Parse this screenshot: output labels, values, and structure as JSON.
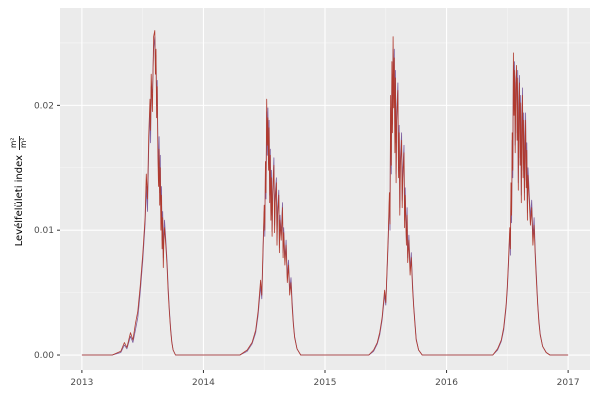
{
  "y_axis": {
    "title_text": "Levélfelületi index",
    "frac_num": "m²",
    "frac_den": "m²"
  },
  "chart_data": {
    "type": "line",
    "title": "",
    "xlabel": "",
    "ylabel": "Levélfelületi index m²/m²",
    "grid": "on",
    "legend": "none",
    "xlim": [
      2012.82,
      2017.18
    ],
    "ylim": [
      -0.0012,
      0.0278
    ],
    "xticks": [
      {
        "v": 2013,
        "label": "2013"
      },
      {
        "v": 2014,
        "label": "2014"
      },
      {
        "v": 2015,
        "label": "2015"
      },
      {
        "v": 2016,
        "label": "2016"
      },
      {
        "v": 2017,
        "label": "2017"
      }
    ],
    "yticks": [
      {
        "v": 0.0,
        "label": "0.00"
      },
      {
        "v": 0.01,
        "label": "0.01"
      },
      {
        "v": 0.02,
        "label": "0.02"
      }
    ],
    "xticks_minor": [
      2013.5,
      2014.5,
      2015.5,
      2016.5
    ],
    "yticks_minor": [
      0.005,
      0.015,
      0.025
    ],
    "colors": {
      "panel_bg": "#ebebeb",
      "grid_major": "#ffffff",
      "grid_minor": "#ffffff",
      "tick_label": "#4d4d4d",
      "tick_mark": "#333333"
    },
    "series": [
      {
        "name": "purple",
        "color": "#7d5fa0",
        "col": 2
      },
      {
        "name": "red",
        "color": "#b03a2e",
        "col": 1
      }
    ],
    "points_format": "[year, y_red, y_purple]",
    "points": [
      [
        2013.0,
        0,
        0
      ],
      [
        2013.25,
        0,
        0
      ],
      [
        2013.32,
        0.0003,
        0.0002
      ],
      [
        2013.35,
        0.001,
        0.0008
      ],
      [
        2013.37,
        0.0006,
        0.0005
      ],
      [
        2013.4,
        0.0018,
        0.0015
      ],
      [
        2013.42,
        0.0012,
        0.001
      ],
      [
        2013.44,
        0.0025,
        0.002
      ],
      [
        2013.46,
        0.0035,
        0.003
      ],
      [
        2013.48,
        0.0055,
        0.005
      ],
      [
        2013.5,
        0.008,
        0.0075
      ],
      [
        2013.52,
        0.011,
        0.0105
      ],
      [
        2013.53,
        0.0145,
        0.0135
      ],
      [
        2013.54,
        0.0125,
        0.0115
      ],
      [
        2013.55,
        0.0175,
        0.0165
      ],
      [
        2013.56,
        0.0205,
        0.0195
      ],
      [
        2013.565,
        0.018,
        0.017
      ],
      [
        2013.57,
        0.0225,
        0.0215
      ],
      [
        2013.58,
        0.0195,
        0.021
      ],
      [
        2013.59,
        0.0255,
        0.0245
      ],
      [
        2013.6,
        0.026,
        0.0255
      ],
      [
        2013.605,
        0.0225,
        0.0235
      ],
      [
        2013.61,
        0.0245,
        0.024
      ],
      [
        2013.615,
        0.019,
        0.02
      ],
      [
        2013.62,
        0.0215,
        0.022
      ],
      [
        2013.625,
        0.016,
        0.017
      ],
      [
        2013.63,
        0.0135,
        0.0145
      ],
      [
        2013.635,
        0.0165,
        0.0175
      ],
      [
        2013.64,
        0.012,
        0.013
      ],
      [
        2013.645,
        0.015,
        0.016
      ],
      [
        2013.65,
        0.01,
        0.011
      ],
      [
        2013.655,
        0.0128,
        0.0135
      ],
      [
        2013.66,
        0.0085,
        0.0092
      ],
      [
        2013.665,
        0.011,
        0.0115
      ],
      [
        2013.67,
        0.007,
        0.0078
      ],
      [
        2013.675,
        0.0092,
        0.0098
      ],
      [
        2013.68,
        0.0102,
        0.0108
      ],
      [
        2013.69,
        0.0088,
        0.0092
      ],
      [
        2013.7,
        0.0072,
        0.0076
      ],
      [
        2013.71,
        0.005,
        0.0054
      ],
      [
        2013.72,
        0.0034,
        0.0036
      ],
      [
        2013.73,
        0.002,
        0.0022
      ],
      [
        2013.74,
        0.001,
        0.0011
      ],
      [
        2013.75,
        0.0004,
        0.0004
      ],
      [
        2013.77,
        0,
        0
      ],
      [
        2014.1,
        0,
        0
      ],
      [
        2014.3,
        0,
        0
      ],
      [
        2014.36,
        0.0004,
        0.0003
      ],
      [
        2014.4,
        0.001,
        0.0009
      ],
      [
        2014.43,
        0.002,
        0.0018
      ],
      [
        2014.45,
        0.0035,
        0.0032
      ],
      [
        2014.47,
        0.006,
        0.0055
      ],
      [
        2014.48,
        0.0048,
        0.0045
      ],
      [
        2014.49,
        0.0085,
        0.008
      ],
      [
        2014.5,
        0.012,
        0.0115
      ],
      [
        2014.505,
        0.01,
        0.0095
      ],
      [
        2014.51,
        0.0155,
        0.0148
      ],
      [
        2014.515,
        0.013,
        0.0125
      ],
      [
        2014.52,
        0.0205,
        0.0195
      ],
      [
        2014.525,
        0.0168,
        0.016
      ],
      [
        2014.53,
        0.019,
        0.0198
      ],
      [
        2014.535,
        0.0148,
        0.0155
      ],
      [
        2014.54,
        0.0182,
        0.0188
      ],
      [
        2014.545,
        0.0122,
        0.0128
      ],
      [
        2014.55,
        0.016,
        0.0165
      ],
      [
        2014.555,
        0.0108,
        0.0112
      ],
      [
        2014.56,
        0.0142,
        0.0148
      ],
      [
        2014.565,
        0.0095,
        0.0099
      ],
      [
        2014.57,
        0.0128,
        0.0132
      ],
      [
        2014.58,
        0.0152,
        0.0158
      ],
      [
        2014.585,
        0.0098,
        0.0104
      ],
      [
        2014.59,
        0.0122,
        0.0128
      ],
      [
        2014.6,
        0.0138,
        0.0142
      ],
      [
        2014.605,
        0.0088,
        0.0092
      ],
      [
        2014.61,
        0.0112,
        0.0118
      ],
      [
        2014.62,
        0.0128,
        0.0132
      ],
      [
        2014.625,
        0.0082,
        0.0086
      ],
      [
        2014.63,
        0.0108,
        0.0112
      ],
      [
        2014.64,
        0.0092,
        0.0096
      ],
      [
        2014.65,
        0.0118,
        0.0122
      ],
      [
        2014.655,
        0.0078,
        0.0082
      ],
      [
        2014.66,
        0.0098,
        0.0102
      ],
      [
        2014.67,
        0.0072,
        0.0076
      ],
      [
        2014.68,
        0.0088,
        0.0092
      ],
      [
        2014.69,
        0.0058,
        0.0062
      ],
      [
        2014.7,
        0.0072,
        0.0076
      ],
      [
        2014.71,
        0.0048,
        0.0052
      ],
      [
        2014.72,
        0.0058,
        0.0062
      ],
      [
        2014.73,
        0.0038,
        0.0042
      ],
      [
        2014.74,
        0.0024,
        0.0026
      ],
      [
        2014.75,
        0.0014,
        0.0015
      ],
      [
        2014.77,
        0.0005,
        0.0005
      ],
      [
        2014.8,
        0,
        0
      ],
      [
        2015.1,
        0,
        0
      ],
      [
        2015.36,
        0,
        0
      ],
      [
        2015.4,
        0.0004,
        0.0003
      ],
      [
        2015.43,
        0.001,
        0.0009
      ],
      [
        2015.45,
        0.0018,
        0.0016
      ],
      [
        2015.47,
        0.003,
        0.0028
      ],
      [
        2015.49,
        0.0052,
        0.0048
      ],
      [
        2015.5,
        0.0042,
        0.004
      ],
      [
        2015.51,
        0.0068,
        0.0065
      ],
      [
        2015.52,
        0.0095,
        0.009
      ],
      [
        2015.53,
        0.013,
        0.0125
      ],
      [
        2015.535,
        0.0105,
        0.01
      ],
      [
        2015.54,
        0.0208,
        0.0198
      ],
      [
        2015.545,
        0.0152,
        0.0145
      ],
      [
        2015.55,
        0.0235,
        0.0225
      ],
      [
        2015.555,
        0.0178,
        0.0185
      ],
      [
        2015.56,
        0.0255,
        0.0245
      ],
      [
        2015.565,
        0.0198,
        0.0205
      ],
      [
        2015.57,
        0.0238,
        0.0245
      ],
      [
        2015.575,
        0.0162,
        0.017
      ],
      [
        2015.58,
        0.0222,
        0.0228
      ],
      [
        2015.585,
        0.0138,
        0.0145
      ],
      [
        2015.59,
        0.0188,
        0.0195
      ],
      [
        2015.6,
        0.0212,
        0.0218
      ],
      [
        2015.605,
        0.0142,
        0.0148
      ],
      [
        2015.61,
        0.0178,
        0.0184
      ],
      [
        2015.615,
        0.0112,
        0.0118
      ],
      [
        2015.62,
        0.0152,
        0.0158
      ],
      [
        2015.63,
        0.0172,
        0.0178
      ],
      [
        2015.635,
        0.0118,
        0.0124
      ],
      [
        2015.64,
        0.0142,
        0.0148
      ],
      [
        2015.65,
        0.0162,
        0.0168
      ],
      [
        2015.655,
        0.0102,
        0.0108
      ],
      [
        2015.66,
        0.0128,
        0.0134
      ],
      [
        2015.67,
        0.0088,
        0.0092
      ],
      [
        2015.675,
        0.0112,
        0.0118
      ],
      [
        2015.68,
        0.0074,
        0.0078
      ],
      [
        2015.69,
        0.0092,
        0.0096
      ],
      [
        2015.7,
        0.0064,
        0.0068
      ],
      [
        2015.71,
        0.0078,
        0.0082
      ],
      [
        2015.72,
        0.0054,
        0.0058
      ],
      [
        2015.73,
        0.0038,
        0.004
      ],
      [
        2015.74,
        0.0024,
        0.0026
      ],
      [
        2015.75,
        0.0012,
        0.0013
      ],
      [
        2015.77,
        0.0004,
        0.0004
      ],
      [
        2015.8,
        0,
        0
      ],
      [
        2016.1,
        0,
        0
      ],
      [
        2016.38,
        0,
        0
      ],
      [
        2016.42,
        0.0005,
        0.0004
      ],
      [
        2016.45,
        0.0012,
        0.0011
      ],
      [
        2016.47,
        0.0022,
        0.002
      ],
      [
        2016.49,
        0.004,
        0.0038
      ],
      [
        2016.5,
        0.0055,
        0.0052
      ],
      [
        2016.51,
        0.0078,
        0.0074
      ],
      [
        2016.52,
        0.0102,
        0.0098
      ],
      [
        2016.525,
        0.0085,
        0.008
      ],
      [
        2016.53,
        0.0138,
        0.0132
      ],
      [
        2016.535,
        0.0112,
        0.0106
      ],
      [
        2016.54,
        0.0178,
        0.0172
      ],
      [
        2016.545,
        0.0148,
        0.0142
      ],
      [
        2016.55,
        0.0242,
        0.0232
      ],
      [
        2016.555,
        0.0192,
        0.0198
      ],
      [
        2016.56,
        0.0228,
        0.0235
      ],
      [
        2016.565,
        0.0162,
        0.0168
      ],
      [
        2016.57,
        0.0212,
        0.0218
      ],
      [
        2016.575,
        0.0232,
        0.0226
      ],
      [
        2016.58,
        0.0172,
        0.0178
      ],
      [
        2016.585,
        0.0222,
        0.0228
      ],
      [
        2016.59,
        0.0132,
        0.0138
      ],
      [
        2016.595,
        0.0188,
        0.0194
      ],
      [
        2016.6,
        0.0218,
        0.0224
      ],
      [
        2016.605,
        0.0152,
        0.0158
      ],
      [
        2016.61,
        0.0202,
        0.0208
      ],
      [
        2016.615,
        0.0122,
        0.0128
      ],
      [
        2016.62,
        0.0178,
        0.0184
      ],
      [
        2016.625,
        0.0208,
        0.0214
      ],
      [
        2016.63,
        0.0142,
        0.0148
      ],
      [
        2016.635,
        0.0188,
        0.0194
      ],
      [
        2016.64,
        0.0124,
        0.013
      ],
      [
        2016.645,
        0.0164,
        0.017
      ],
      [
        2016.65,
        0.0188,
        0.0194
      ],
      [
        2016.655,
        0.0134,
        0.014
      ],
      [
        2016.66,
        0.0164,
        0.017
      ],
      [
        2016.665,
        0.0108,
        0.0114
      ],
      [
        2016.67,
        0.0144,
        0.015
      ],
      [
        2016.68,
        0.0124,
        0.013
      ],
      [
        2016.69,
        0.0104,
        0.011
      ],
      [
        2016.7,
        0.0118,
        0.0124
      ],
      [
        2016.71,
        0.0088,
        0.0094
      ],
      [
        2016.72,
        0.0104,
        0.011
      ],
      [
        2016.73,
        0.0078,
        0.0082
      ],
      [
        2016.74,
        0.0058,
        0.0062
      ],
      [
        2016.75,
        0.004,
        0.0042
      ],
      [
        2016.76,
        0.0026,
        0.0028
      ],
      [
        2016.77,
        0.0016,
        0.0017
      ],
      [
        2016.79,
        0.0007,
        0.0007
      ],
      [
        2016.82,
        0.0002,
        0.0002
      ],
      [
        2016.85,
        0,
        0
      ],
      [
        2017.0,
        0,
        0
      ]
    ]
  }
}
